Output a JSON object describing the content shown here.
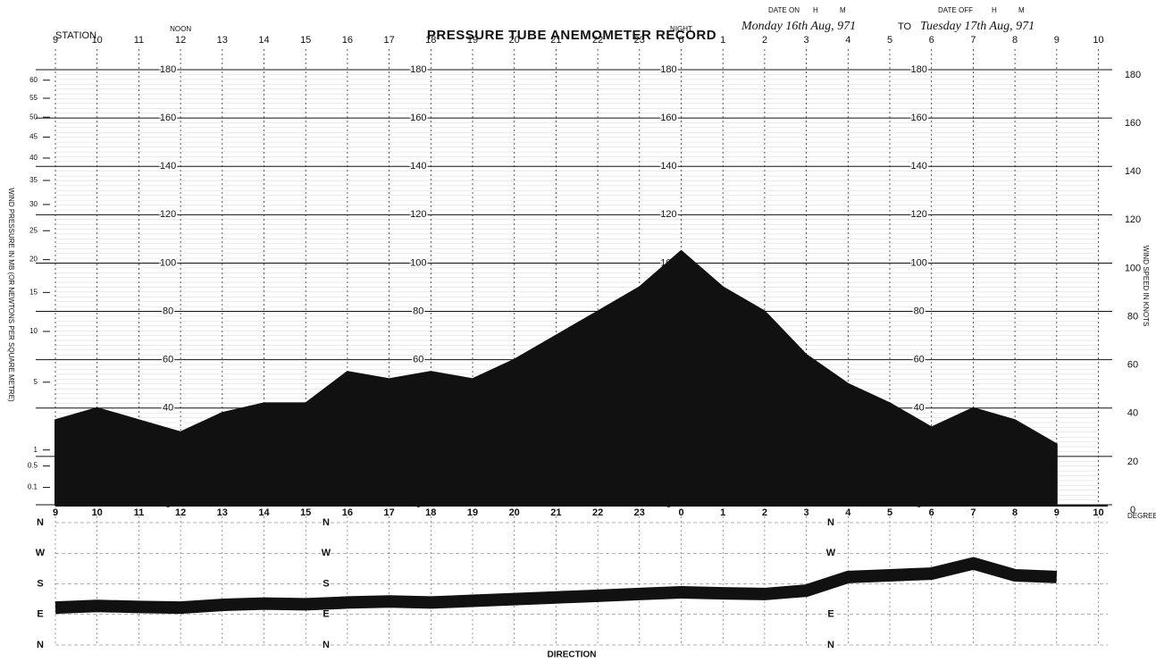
{
  "header": {
    "station": "STATION",
    "date_on": "DATE ON",
    "date_off": "DATE OFF",
    "h": "H",
    "m": "M",
    "date_from": "Monday 16th Aug, 971",
    "to": "TO",
    "date_to": "Tuesday 17th Aug, 971"
  },
  "chart_data": [
    {
      "type": "area",
      "title": "PRESSURE TUBE ANEMOMETER RECORD",
      "y_label": "WIND SPEED IN KNOTS",
      "y2_label": "WIND PRESSURE IN MB (OR NEWTONS PER SQUARE METRE)",
      "categories": [
        "9",
        "10",
        "11",
        "12",
        "13",
        "14",
        "15",
        "16",
        "17",
        "18",
        "19",
        "20",
        "21",
        "22",
        "23",
        "0",
        "1",
        "2",
        "3",
        "4",
        "5",
        "6",
        "7",
        "8",
        "9",
        "10"
      ],
      "annotations": [
        {
          "text": "NOON",
          "category": "12"
        },
        {
          "text": "NIGHT",
          "category": "0"
        }
      ],
      "color": "#111111",
      "values": [
        35,
        40,
        35,
        30,
        38,
        42,
        42,
        55,
        52,
        55,
        52,
        60,
        70,
        80,
        90,
        105,
        90,
        80,
        62,
        50,
        42,
        32,
        40,
        35,
        25,
        null
      ],
      "ylim": [
        0,
        180
      ],
      "yticks": [
        0,
        20,
        40,
        60,
        80,
        100,
        120,
        140,
        160,
        180
      ],
      "y2lim": [
        0,
        63
      ],
      "y2scale": "sqrt",
      "y2ticks": [
        60,
        55,
        50,
        45,
        40,
        35,
        30,
        25,
        20,
        15,
        10,
        5,
        1,
        0.5,
        0.1
      ],
      "grid": true
    },
    {
      "type": "line",
      "title": "DIRECTION",
      "y_label": "DEGREES FROM N",
      "categories": [
        "9",
        "10",
        "11",
        "12",
        "13",
        "14",
        "15",
        "16",
        "17",
        "18",
        "19",
        "20",
        "21",
        "22",
        "23",
        "0",
        "1",
        "2",
        "3",
        "4",
        "5",
        "6",
        "7",
        "8",
        "9",
        "10"
      ],
      "color": "#111111",
      "values": [
        110,
        115,
        112,
        110,
        118,
        122,
        120,
        125,
        128,
        125,
        130,
        135,
        140,
        145,
        150,
        155,
        152,
        150,
        160,
        200,
        205,
        210,
        240,
        205,
        200,
        null
      ],
      "ylim": [
        0,
        360
      ],
      "yticks": [
        {
          "value": 0,
          "label": "N"
        },
        {
          "value": 90,
          "label": "E"
        },
        {
          "value": 180,
          "label": "S"
        },
        {
          "value": 270,
          "label": "W"
        },
        {
          "value": 360,
          "label": "N"
        }
      ]
    }
  ]
}
